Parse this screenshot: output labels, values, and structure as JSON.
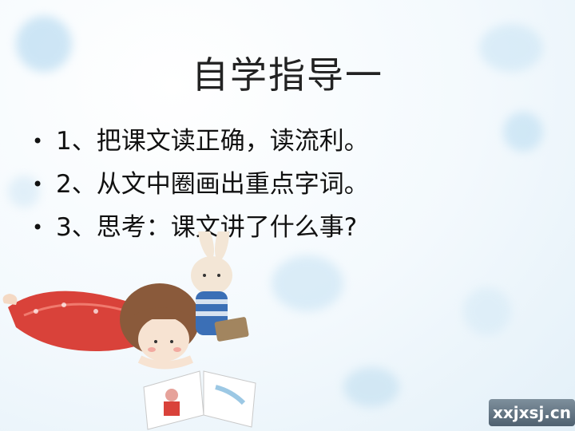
{
  "slide": {
    "title": "自学指导一",
    "bullets": [
      {
        "marker": "•",
        "text": "1、把课文读正确，读流利。"
      },
      {
        "marker": "•",
        "text": "2、从文中圈画出重点字词。"
      },
      {
        "marker": "•",
        "text": "3、思考：课文讲了什么事?"
      }
    ],
    "watermark": "xxjxsj.cn"
  },
  "colors": {
    "title": "#222222",
    "text": "#111111",
    "accent_blue": "#9cc8e4",
    "dress_red": "#d9423a"
  },
  "illustration": {
    "subject": "girl-lying-reading-book-with-rabbit"
  }
}
